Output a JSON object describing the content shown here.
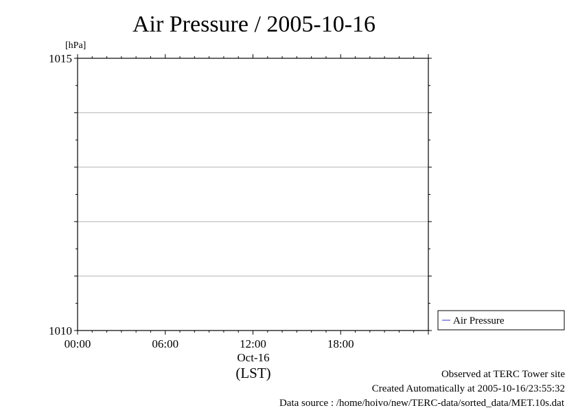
{
  "chart_data": {
    "type": "line",
    "title": "Air Pressure / 2005-10-16",
    "ylabel": "[hPa]",
    "ylim": [
      1010,
      1015
    ],
    "xlim_hours": [
      0,
      24
    ],
    "x_ticks": [
      {
        "hour": 0,
        "label": "00:00"
      },
      {
        "hour": 6,
        "label": "06:00"
      },
      {
        "hour": 12,
        "label": "12:00"
      },
      {
        "hour": 18,
        "label": "18:00"
      }
    ],
    "y_ticks": [
      {
        "value": 1015,
        "label": "1015"
      },
      {
        "value": 1010,
        "label": "1010"
      }
    ],
    "y_gridlines": [
      1011,
      1012,
      1013,
      1014
    ],
    "x_date_label": "Oct-16",
    "x_timezone_label": "(LST)",
    "grid": true,
    "legend_position": "bottom-right",
    "series": [
      {
        "name": "Air Pressure",
        "color": "#3333cc",
        "values": []
      }
    ]
  },
  "footer": {
    "observed": "Observed at TERC Tower site",
    "created": "Created Automatically at 2005-10-16/23:55:32",
    "source": "Data source : /home/hoivo/new/TERC-data/sorted_data/MET.10s.dat"
  },
  "colors": {
    "gridline": "#b4b4b4",
    "axis": "#000000"
  }
}
